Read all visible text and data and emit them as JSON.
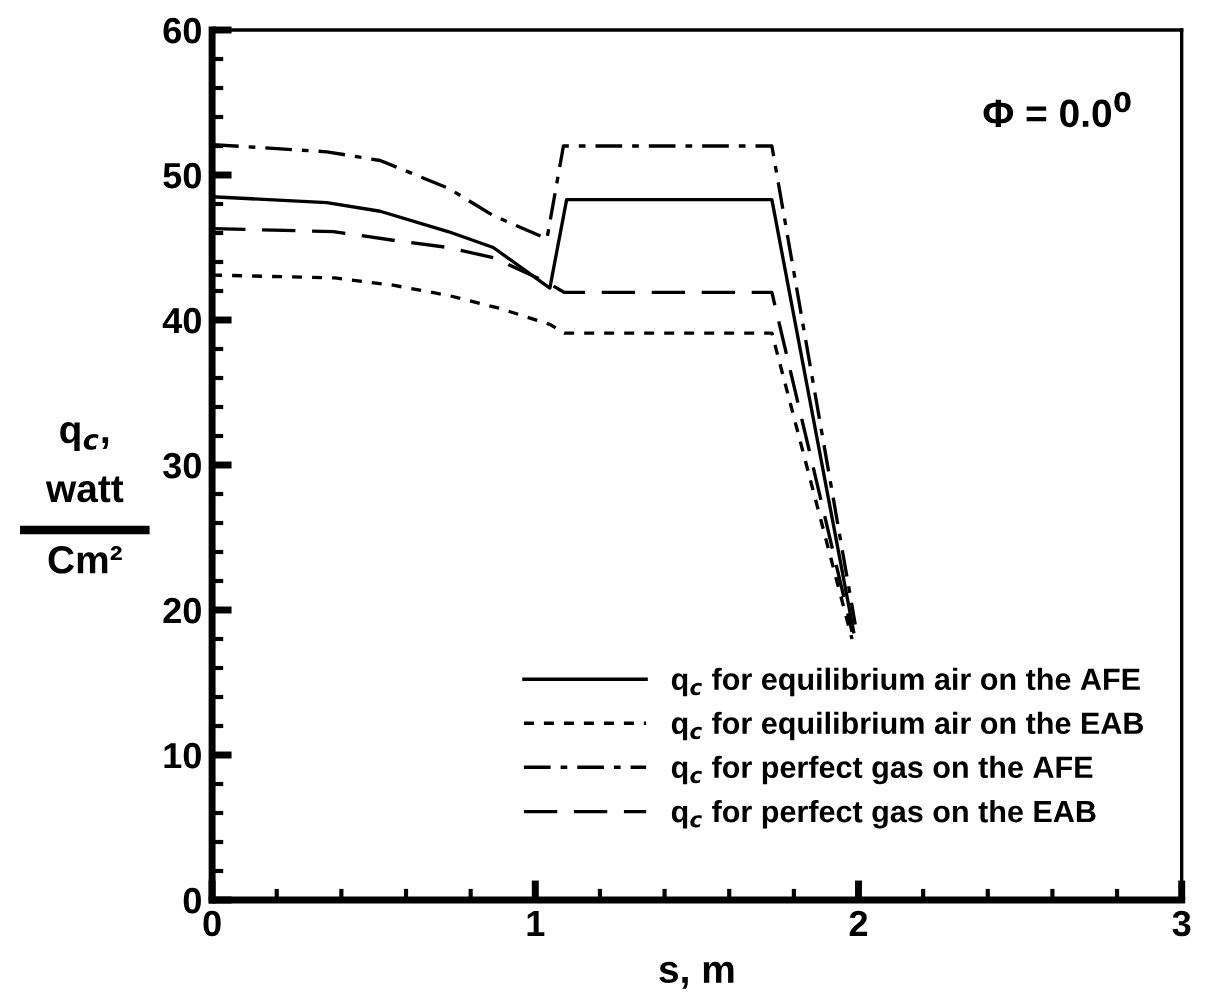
{
  "chart_data": {
    "type": "line",
    "xlabel": "s, m",
    "ylabel": "q$_{c}$,\nwatt\nCm²",
    "annotations": [
      "Φ = 0.0$^{0}$"
    ],
    "xlim": [
      0,
      3
    ],
    "xticks": [
      0,
      1,
      2,
      3
    ],
    "ylim": [
      0,
      60
    ],
    "yticks": [
      0,
      10,
      20,
      30,
      40,
      50,
      60
    ],
    "grid": false,
    "legend": "bottom right",
    "marker": "none",
    "series": [
      {
        "name": "q$_{c}$ for equilibrium air on the AFE",
        "color": "#000000",
        "line_style": "solid",
        "x": [
          0,
          0.355,
          0.52,
          0.73,
          0.87,
          1.045,
          1.097,
          1.732,
          1.985
        ],
        "values": [
          48.5,
          48.1,
          47.5,
          46.1,
          45.0,
          42.2,
          48.3,
          48.3,
          18.5
        ]
      },
      {
        "name": "q$_{c}$ for equilibrium air on the EAB",
        "color": "#000000",
        "line_style": "dotted",
        "x": [
          0,
          0.38,
          0.56,
          0.73,
          0.89,
          1.045,
          1.09,
          1.732,
          1.98
        ],
        "values": [
          43.1,
          42.9,
          42.4,
          41.7,
          40.8,
          39.7,
          39.1,
          39.1,
          18.0
        ]
      },
      {
        "name": "q$_{c}$ for perfect gas on the AFE",
        "color": "#000000",
        "line_style": "dashdot",
        "x": [
          0,
          0.355,
          0.52,
          0.73,
          0.87,
          1.036,
          1.087,
          1.732,
          1.99
        ],
        "values": [
          52.1,
          51.6,
          51.0,
          49.1,
          47.2,
          45.6,
          52.0,
          52.0,
          19.0
        ]
      },
      {
        "name": "q$_{c}$ for perfect gas on the EAB",
        "color": "#000000",
        "line_style": "dashed",
        "x": [
          0,
          0.375,
          0.56,
          0.73,
          0.87,
          1.036,
          1.09,
          1.732,
          1.98
        ],
        "values": [
          46.3,
          46.1,
          45.5,
          45.0,
          44.3,
          42.6,
          41.9,
          41.9,
          18.5
        ]
      }
    ]
  }
}
